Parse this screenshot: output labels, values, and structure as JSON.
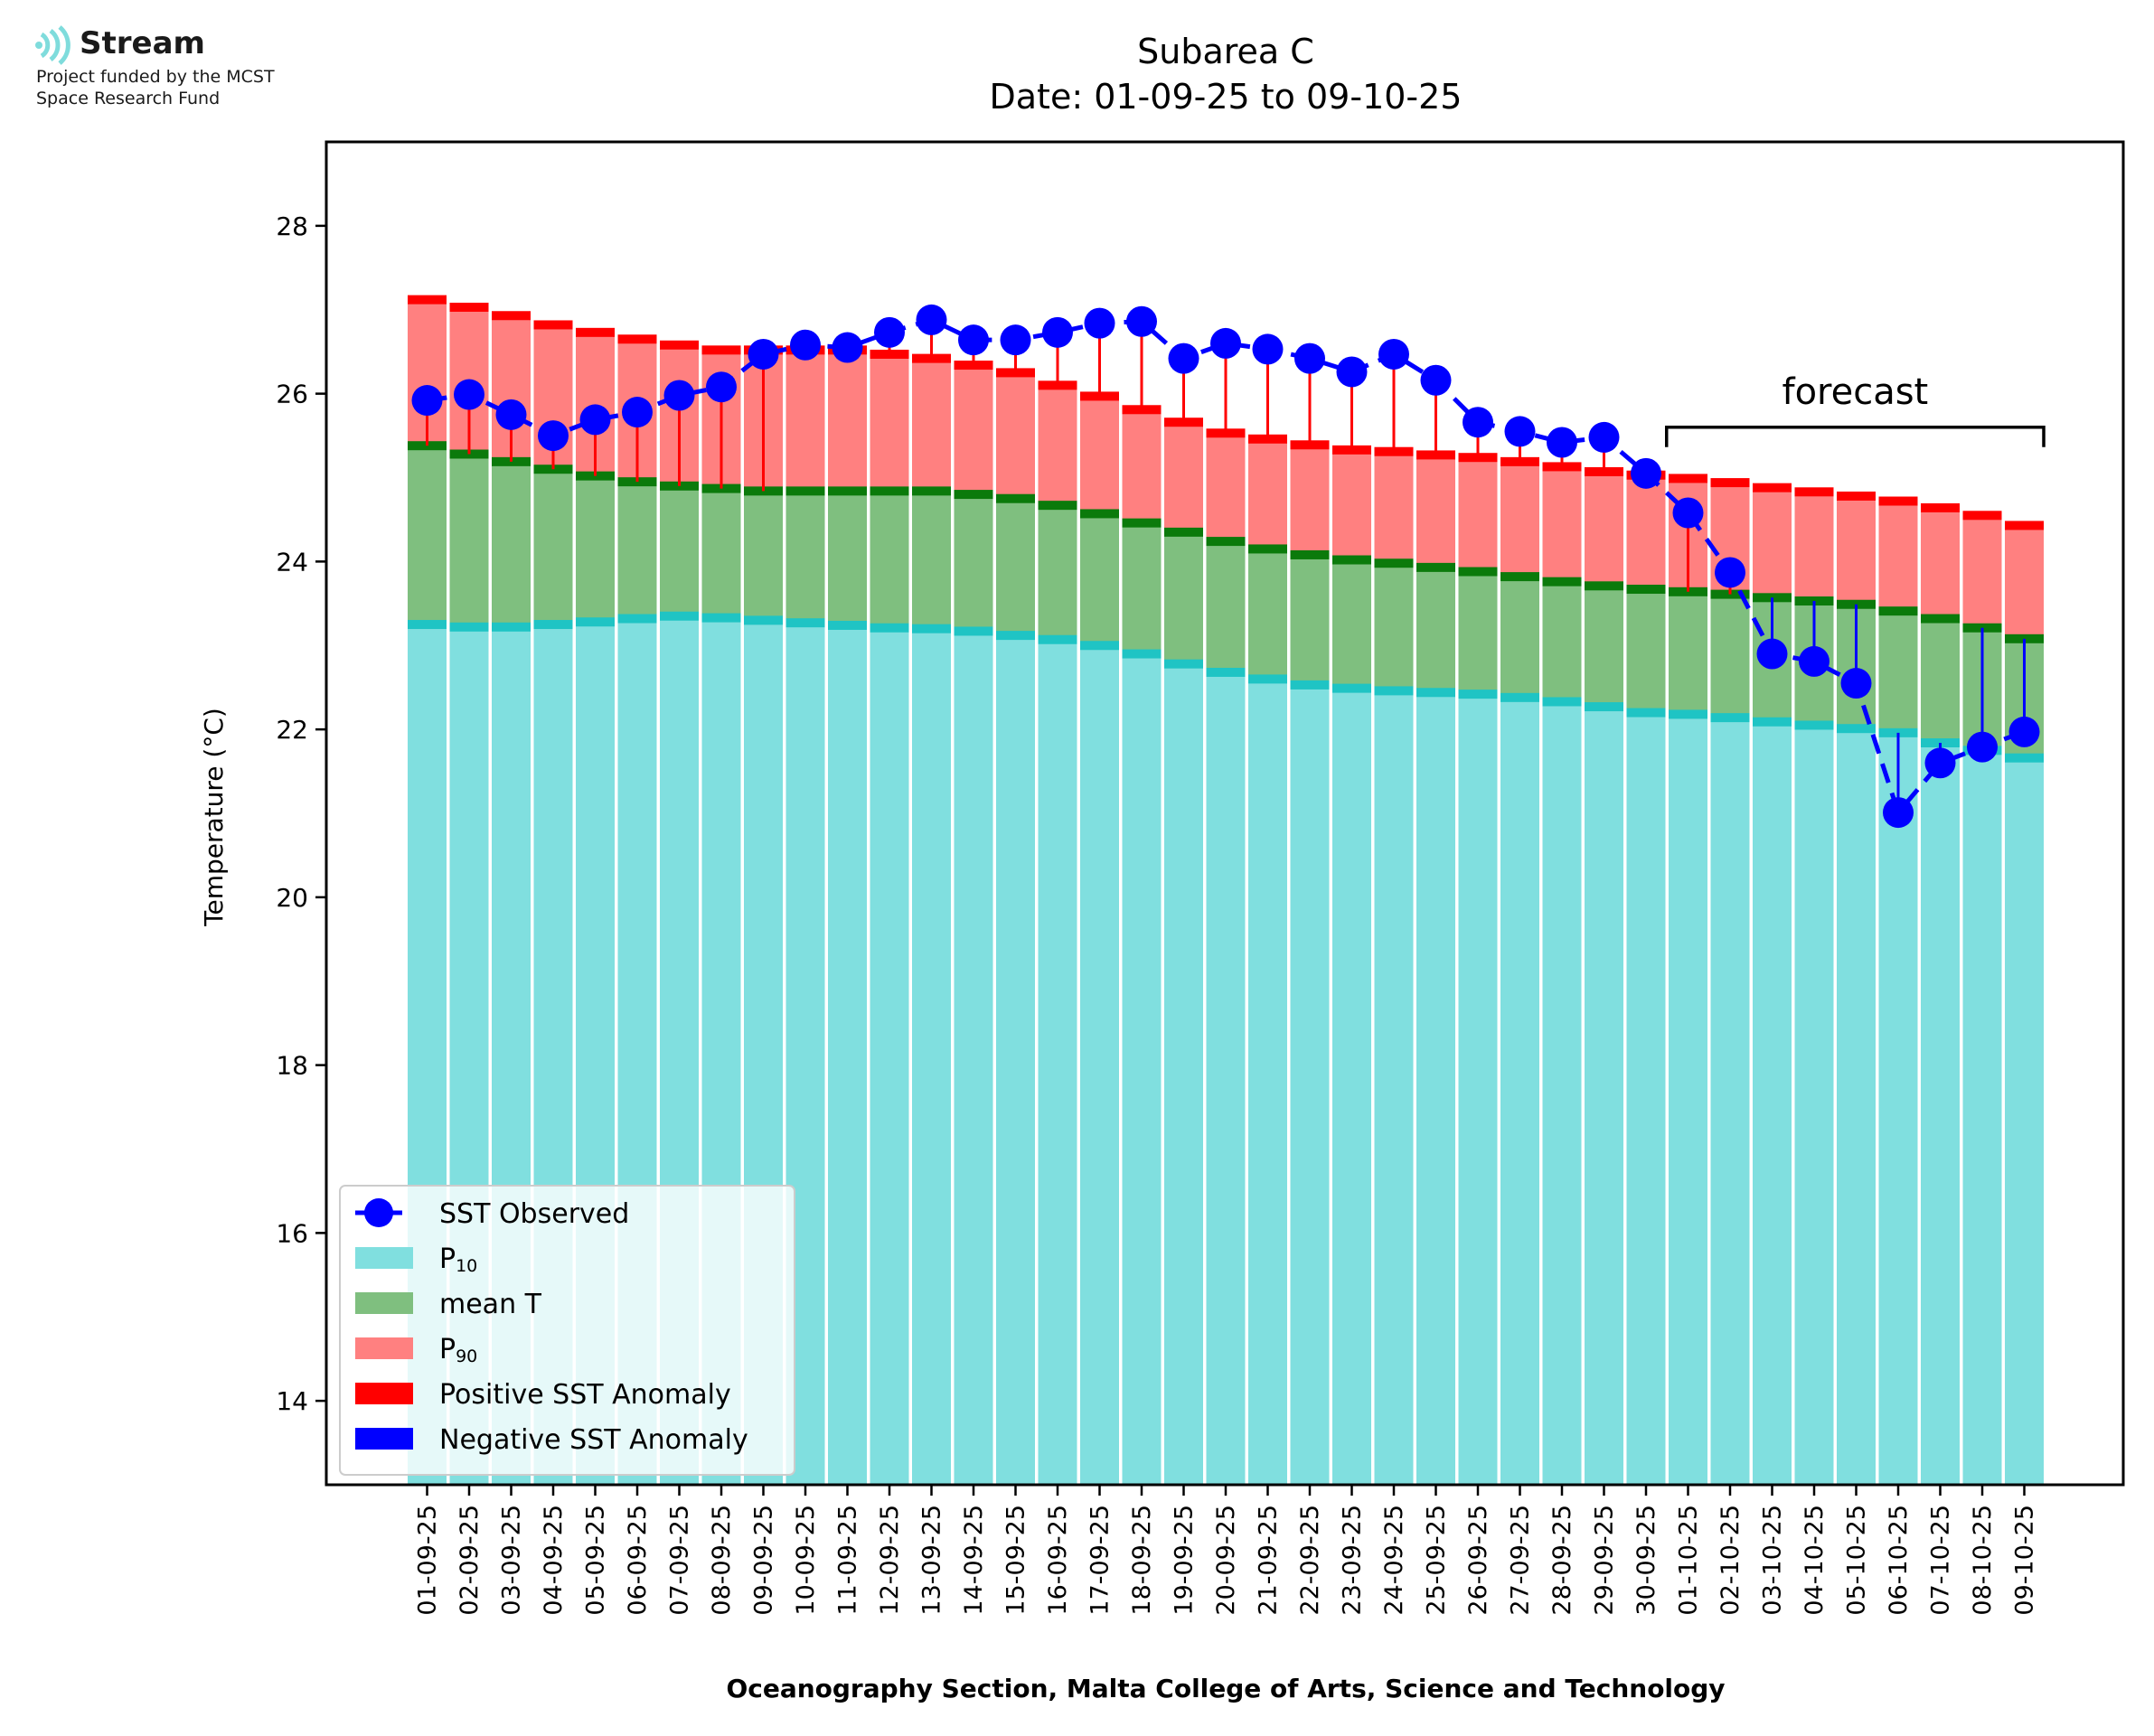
{
  "logo": {
    "name": "Stream",
    "line1": "Project funded by the MCST",
    "line2": "Space Research Fund"
  },
  "chart_data": {
    "type": "bar",
    "title": "Subarea C",
    "subtitle": "Date: 01-09-25 to 09-10-25",
    "xlabel": "Oceanography Section, Malta College of Arts, Science and Technology",
    "ylabel": "Temperature (°C)",
    "ylim": [
      13,
      29
    ],
    "yticks": [
      14,
      16,
      18,
      20,
      22,
      24,
      26,
      28
    ],
    "categories": [
      "01-09-25",
      "02-09-25",
      "03-09-25",
      "04-09-25",
      "05-09-25",
      "06-09-25",
      "07-09-25",
      "08-09-25",
      "09-09-25",
      "10-09-25",
      "11-09-25",
      "12-09-25",
      "13-09-25",
      "14-09-25",
      "15-09-25",
      "16-09-25",
      "17-09-25",
      "18-09-25",
      "19-09-25",
      "20-09-25",
      "21-09-25",
      "22-09-25",
      "23-09-25",
      "24-09-25",
      "25-09-25",
      "26-09-25",
      "27-09-25",
      "28-09-25",
      "29-09-25",
      "30-09-25",
      "01-10-25",
      "02-10-25",
      "03-10-25",
      "04-10-25",
      "05-10-25",
      "06-10-25",
      "07-10-25",
      "08-10-25",
      "09-10-25"
    ],
    "series": [
      {
        "name": "P10",
        "color": "#80dfdf",
        "edge": "#1fc4c4",
        "values": [
          23.25,
          23.22,
          23.22,
          23.25,
          23.28,
          23.32,
          23.35,
          23.33,
          23.3,
          23.27,
          23.24,
          23.21,
          23.2,
          23.17,
          23.12,
          23.07,
          23.0,
          22.9,
          22.78,
          22.68,
          22.6,
          22.53,
          22.49,
          22.46,
          22.44,
          22.42,
          22.38,
          22.33,
          22.27,
          22.2,
          22.18,
          22.14,
          22.09,
          22.05,
          22.01,
          21.96,
          21.84,
          21.75,
          21.66
        ]
      },
      {
        "name": "mean T",
        "color": "#7fbf7f",
        "edge": "#0b7a0b",
        "values": [
          25.38,
          25.28,
          25.19,
          25.1,
          25.02,
          24.95,
          24.9,
          24.87,
          24.84,
          24.84,
          24.84,
          24.84,
          24.84,
          24.8,
          24.75,
          24.67,
          24.57,
          24.46,
          24.35,
          24.24,
          24.15,
          24.08,
          24.02,
          23.98,
          23.93,
          23.88,
          23.82,
          23.76,
          23.71,
          23.67,
          23.64,
          23.61,
          23.57,
          23.53,
          23.49,
          23.41,
          23.32,
          23.21,
          23.08
        ]
      },
      {
        "name": "P90",
        "color": "#ff8080",
        "edge": "#ff0000",
        "values": [
          27.12,
          27.03,
          26.93,
          26.82,
          26.73,
          26.65,
          26.58,
          26.52,
          26.52,
          26.52,
          26.52,
          26.47,
          26.42,
          26.34,
          26.25,
          26.1,
          25.97,
          25.81,
          25.66,
          25.53,
          25.46,
          25.39,
          25.33,
          25.31,
          25.27,
          25.24,
          25.19,
          25.13,
          25.07,
          25.03,
          24.99,
          24.94,
          24.88,
          24.83,
          24.78,
          24.72,
          24.64,
          24.55,
          24.43
        ]
      },
      {
        "name": "SST Observed",
        "color": "#0000ff",
        "values": [
          25.92,
          25.99,
          25.75,
          25.5,
          25.69,
          25.78,
          25.98,
          26.08,
          26.47,
          26.58,
          26.55,
          26.73,
          26.88,
          26.64,
          26.64,
          26.73,
          26.84,
          26.86,
          26.42,
          26.6,
          26.53,
          26.42,
          26.26,
          26.47,
          26.16,
          25.66,
          25.55,
          25.42,
          25.48,
          25.05,
          24.58,
          23.87,
          22.9,
          22.81,
          22.55,
          21.01,
          21.6,
          21.79,
          21.97
        ]
      }
    ],
    "legend": {
      "position": "lower-left",
      "entries": [
        {
          "label": "SST Observed",
          "kind": "line-marker",
          "color": "#0000ff"
        },
        {
          "label": "P",
          "sub": "10",
          "kind": "patch",
          "color": "#80dfdf"
        },
        {
          "label": "mean T",
          "kind": "patch",
          "color": "#7fbf7f"
        },
        {
          "label": "P",
          "sub": "90",
          "kind": "patch",
          "color": "#ff8080"
        },
        {
          "label": "Positive SST Anomaly",
          "kind": "patch",
          "color": "#ff0000"
        },
        {
          "label": "Negative SST Anomaly",
          "kind": "patch",
          "color": "#0000ff"
        }
      ]
    },
    "annotation": {
      "text": "forecast",
      "start": "01-10-25",
      "end": "09-10-25",
      "y": 25.6
    },
    "grid": false
  }
}
